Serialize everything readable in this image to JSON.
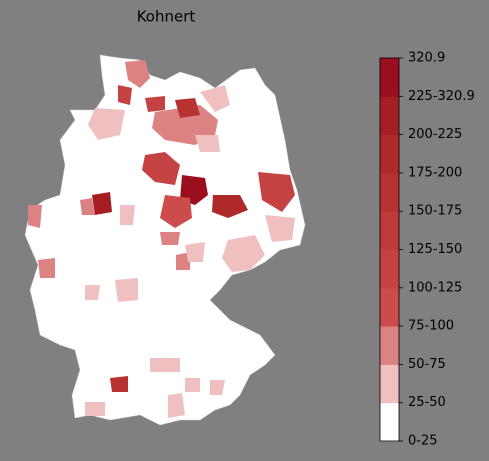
{
  "title": "Kohnert",
  "colorbar": {
    "labels": [
      "0-25",
      "25-50",
      "50-75",
      "75-100",
      "100-125",
      "125-150",
      "150-175",
      "175-200",
      "200-225",
      "225-320.9",
      "320.9"
    ],
    "colors": [
      "#ffffff",
      "#f0c0c0",
      "#dc8282",
      "#cc4c4c",
      "#c54242",
      "#bf3a3a",
      "#b83232",
      "#b02929",
      "#a61e24",
      "#9a0e1e"
    ]
  }
}
